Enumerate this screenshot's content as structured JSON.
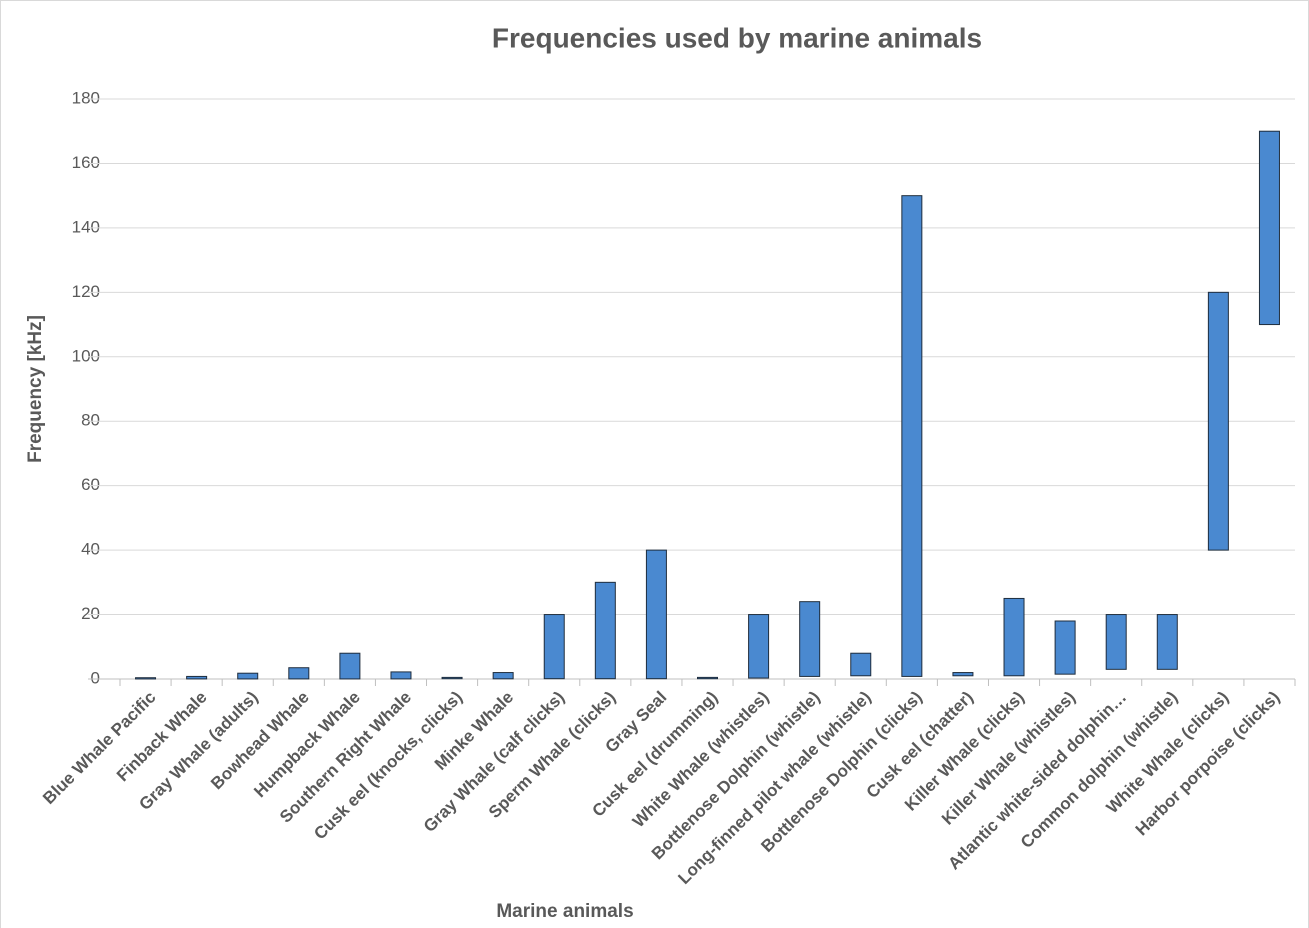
{
  "chart_data": {
    "type": "range_bar",
    "title": "Frequencies used by marine animals",
    "x_label": "Marine animals",
    "y_label": "Frequency [kHz]",
    "categories": [
      "Blue Whale Pacific",
      "Finback Whale",
      "Gray Whale (adults)",
      "Bowhead Whale",
      "Humpback Whale",
      "Southern Right Whale",
      "Cusk eel (knocks, clicks)",
      "Minke Whale",
      "Gray Whale (calf clicks)",
      "Sperm Whale (clicks)",
      "Gray Seal",
      "Cusk eel (drumming)",
      "White Whale (whistles)",
      "Bottlenose Dolphin (whistle)",
      "Long-finned pilot whale (whistle)",
      "Bottlenose Dolphin (clicks)",
      "Cusk eel (chatter)",
      "Killer Whale (clicks)",
      "Killer Whale (whistles)",
      "Atlantic white-sided dolphin…",
      "Common dolphin (whistle)",
      "White Whale (clicks)",
      "Harbor porpoise (clicks)"
    ],
    "low": [
      0.01,
      0.02,
      0.02,
      0.03,
      0.02,
      0.03,
      0.1,
      0.06,
      0.1,
      0.1,
      0.1,
      0.1,
      0.3,
      0.8,
      1,
      0.8,
      1,
      1,
      1.5,
      3,
      3,
      40,
      110
    ],
    "high": [
      0.4,
      0.8,
      1.8,
      3.5,
      8,
      2.2,
      0.5,
      2,
      20,
      30,
      40,
      0.5,
      20,
      24,
      8,
      150,
      2,
      25,
      18,
      20,
      20,
      120,
      170
    ],
    "color": "#4a89d0",
    "ylim": [
      0,
      180
    ],
    "yticks": [
      0,
      20,
      40,
      60,
      80,
      100,
      120,
      140,
      160,
      180
    ],
    "grid": true
  }
}
